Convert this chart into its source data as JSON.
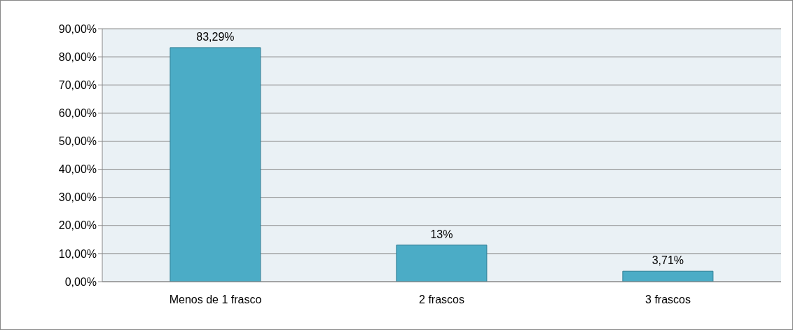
{
  "chart_data": {
    "type": "bar",
    "categories": [
      "Menos de 1 frasco",
      "2 frascos",
      "3 frascos"
    ],
    "values": [
      83.29,
      13,
      3.71
    ],
    "value_labels": [
      "83,29%",
      "13%",
      "3,71%"
    ],
    "color": "#4bacc6",
    "ylim": [
      0,
      90
    ],
    "yticks": [
      {
        "value": 0,
        "label": "0,00%"
      },
      {
        "value": 10,
        "label": "10,00%"
      },
      {
        "value": 20,
        "label": "20,00%"
      },
      {
        "value": 30,
        "label": "30,00%"
      },
      {
        "value": 40,
        "label": "40,00%"
      },
      {
        "value": 50,
        "label": "50,00%"
      },
      {
        "value": 60,
        "label": "60,00%"
      },
      {
        "value": 70,
        "label": "70,00%"
      },
      {
        "value": 80,
        "label": "80,00%"
      },
      {
        "value": 90,
        "label": "90,00%"
      }
    ],
    "grid": "y"
  }
}
